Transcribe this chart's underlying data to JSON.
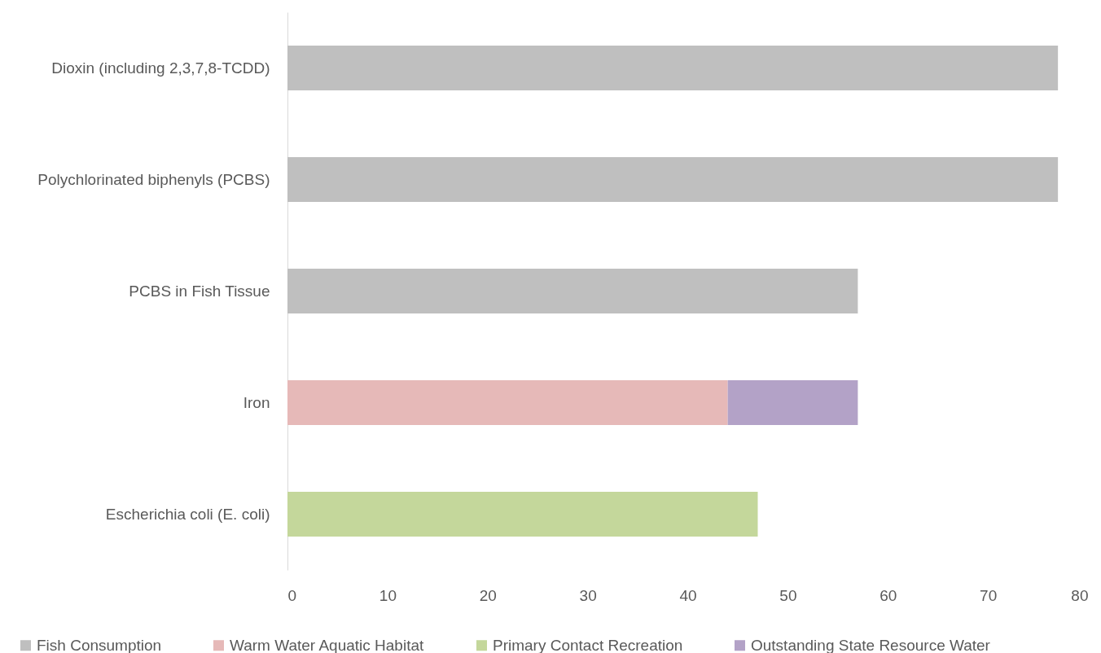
{
  "chart_data": {
    "type": "bar",
    "orientation": "horizontal",
    "stacked": true,
    "categories": [
      "Dioxin (including 2,3,7,8-TCDD)",
      "Polychlorinated biphenyls (PCBS)",
      "PCBS in Fish Tissue",
      "Iron",
      "Escherichia coli (E. coli)"
    ],
    "series": [
      {
        "name": "Fish Consumption",
        "color": "#bfbfbf",
        "values": [
          77,
          77,
          57,
          null,
          null
        ]
      },
      {
        "name": "Warm Water Aquatic Habitat",
        "color": "#e6b9b8",
        "values": [
          null,
          null,
          null,
          44,
          null
        ]
      },
      {
        "name": "Primary Contact Recreation",
        "color": "#c4d79b",
        "values": [
          null,
          null,
          null,
          null,
          47
        ]
      },
      {
        "name": "Outstanding State Resource Water",
        "color": "#b3a2c7",
        "values": [
          null,
          null,
          null,
          13,
          null
        ]
      }
    ],
    "xlim": [
      0,
      80
    ],
    "xticks": [
      0,
      10,
      20,
      30,
      40,
      50,
      60,
      70,
      80
    ],
    "grid": false,
    "legend": "bottom"
  }
}
